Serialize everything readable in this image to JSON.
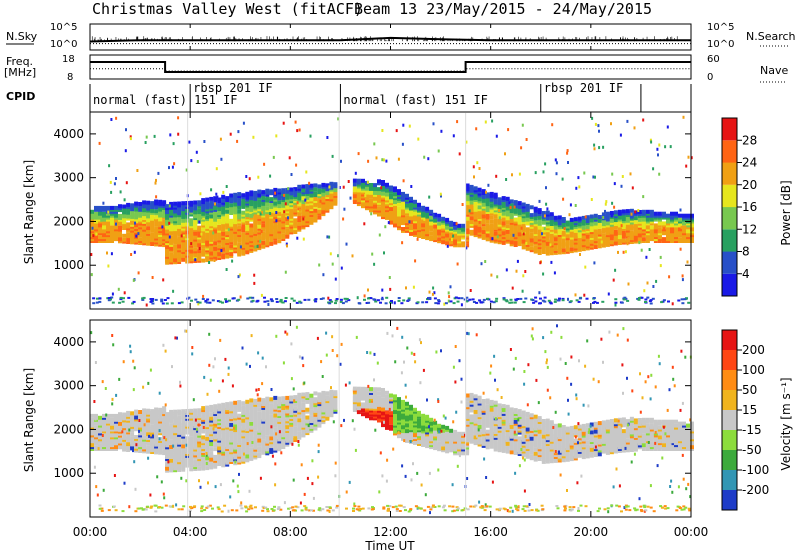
{
  "chart_data": [
    {
      "type": "line",
      "panel": "noise",
      "title_left": "Christmas Valley West (fitACF)",
      "title_right": "Beam 13 23/May/2015 - 24/May/2015",
      "ylabel_left": "N.Sky",
      "ylabel_right": "N.Search",
      "ylim": [
        1,
        100000
      ],
      "y_scale": "log",
      "left_ticks": [
        "10^5",
        "10^0"
      ],
      "right_ticks": [
        "10^5",
        "10^0"
      ],
      "series": [
        {
          "name": "N.Sky",
          "style": "solid",
          "x": [
            0,
            2,
            4,
            6,
            8,
            10,
            12,
            14,
            16,
            18,
            20,
            22,
            24
          ],
          "y": [
            30,
            60,
            60,
            60,
            60,
            60,
            200,
            100,
            60,
            60,
            60,
            60,
            60
          ]
        },
        {
          "name": "N.Search",
          "style": "dotted",
          "x": [
            0,
            24
          ],
          "y": [
            10,
            10
          ]
        }
      ]
    },
    {
      "type": "line",
      "panel": "frequency",
      "ylabel_left": "Freq.\n[MHz]",
      "ylabel_right": "Nave",
      "left_ticks": [
        "18",
        "8"
      ],
      "right_ticks": [
        "60",
        "0"
      ],
      "ylim_left": [
        8,
        18
      ],
      "ylim_right": [
        0,
        60
      ],
      "series": [
        {
          "name": "Freq",
          "style": "solid",
          "x": [
            0,
            3,
            3,
            15,
            15,
            24
          ],
          "y": [
            15.5,
            15.5,
            10.5,
            10.5,
            15.5,
            15.5
          ]
        },
        {
          "name": "Nave",
          "style": "dotted",
          "x": [
            0,
            3,
            3,
            15,
            15,
            24
          ],
          "y": [
            25,
            25,
            18,
            18,
            25,
            25
          ]
        }
      ]
    },
    {
      "type": "table",
      "panel": "cpid",
      "label": "CPID",
      "segments": [
        {
          "start": 0,
          "end": 4,
          "label": "normal (fast) 151 IF"
        },
        {
          "start": 4,
          "end": 10,
          "label": "rbsp 201 IF"
        },
        {
          "start": 10,
          "end": 18,
          "label": "normal (fast) 151 IF"
        },
        {
          "start": 18,
          "end": 22,
          "label": "rbsp 201 IF"
        }
      ]
    },
    {
      "type": "heatmap",
      "panel": "power",
      "ylabel": "Slant Range [km]",
      "ylim": [
        0,
        4500
      ],
      "yticks": [
        "1000",
        "2000",
        "3000",
        "4000"
      ],
      "xlim": [
        0,
        24
      ],
      "colorbar_label": "Power [dB]",
      "colorbar_ticks": [
        "4",
        "8",
        "12",
        "16",
        "20",
        "24",
        "28"
      ],
      "colorbar_colors": [
        "#1a1ae6",
        "#2850c8",
        "#28a060",
        "#78c850",
        "#e6e61e",
        "#f0a014",
        "#ff6414",
        "#e61414"
      ],
      "bands": [
        {
          "x": [
            0,
            1,
            2,
            3
          ],
          "lo": [
            1500,
            1500,
            1450,
            1400
          ],
          "hi": [
            2300,
            2300,
            2400,
            2450
          ]
        },
        {
          "x": [
            3,
            4.5,
            6,
            7.5,
            9,
            9.8
          ],
          "lo": [
            1000,
            1050,
            1200,
            1500,
            2000,
            2400
          ],
          "hi": [
            2350,
            2450,
            2600,
            2700,
            2800,
            2850
          ]
        },
        {
          "x": [
            10.5,
            11.5,
            12.5,
            13.5,
            14.5,
            15
          ],
          "lo": [
            2400,
            2100,
            1700,
            1550,
            1400,
            1400
          ],
          "hi": [
            2900,
            2900,
            2600,
            2200,
            1900,
            1850
          ]
        },
        {
          "x": [
            15,
            16,
            17,
            18,
            19,
            20,
            21,
            22,
            23,
            24
          ],
          "lo": [
            1700,
            1500,
            1400,
            1200,
            1250,
            1350,
            1450,
            1500,
            1500,
            1500
          ],
          "hi": [
            2800,
            2600,
            2400,
            2200,
            2000,
            2100,
            2200,
            2200,
            2150,
            2100
          ]
        }
      ]
    },
    {
      "type": "heatmap",
      "panel": "velocity",
      "ylabel": "Slant Range [km]",
      "ylim": [
        0,
        4500
      ],
      "yticks": [
        "1000",
        "2000",
        "3000",
        "4000"
      ],
      "xlim": [
        0,
        24
      ],
      "xticks": [
        "00:00",
        "04:00",
        "08:00",
        "12:00",
        "16:00",
        "20:00",
        "00:00"
      ],
      "xlabel": "Time UT",
      "colorbar_label": "Velocity [m s⁻¹]",
      "colorbar_ticks": [
        "200",
        "100",
        "50",
        "15",
        "-15",
        "-50",
        "-100",
        "-200"
      ],
      "colorbar_colors": [
        "#1e3cc8",
        "#3296b4",
        "#3caa3c",
        "#8cdc3c",
        "#c8c8c8",
        "#f0b41e",
        "#ff8c14",
        "#ff4614",
        "#e61414"
      ],
      "bands": [
        {
          "x": [
            0,
            1,
            2,
            3
          ],
          "lo": [
            1500,
            1500,
            1450,
            1400
          ],
          "hi": [
            2300,
            2300,
            2400,
            2450
          ]
        },
        {
          "x": [
            3,
            4.5,
            6,
            7.5,
            9,
            9.8
          ],
          "lo": [
            1000,
            1050,
            1200,
            1500,
            2000,
            2400
          ],
          "hi": [
            2350,
            2450,
            2600,
            2700,
            2800,
            2850
          ]
        },
        {
          "x": [
            10.5,
            11.5,
            12.5,
            13.5,
            14.5,
            15
          ],
          "lo": [
            2400,
            2100,
            1700,
            1550,
            1400,
            1400
          ],
          "hi": [
            2900,
            2900,
            2600,
            2200,
            1900,
            1850
          ]
        },
        {
          "x": [
            15,
            16,
            17,
            18,
            19,
            20,
            21,
            22,
            23,
            24
          ],
          "lo": [
            1700,
            1500,
            1400,
            1200,
            1250,
            1350,
            1450,
            1500,
            1500,
            1500
          ],
          "hi": [
            2800,
            2600,
            2400,
            2200,
            2000,
            2100,
            2200,
            2200,
            2150,
            2100
          ]
        }
      ]
    }
  ]
}
